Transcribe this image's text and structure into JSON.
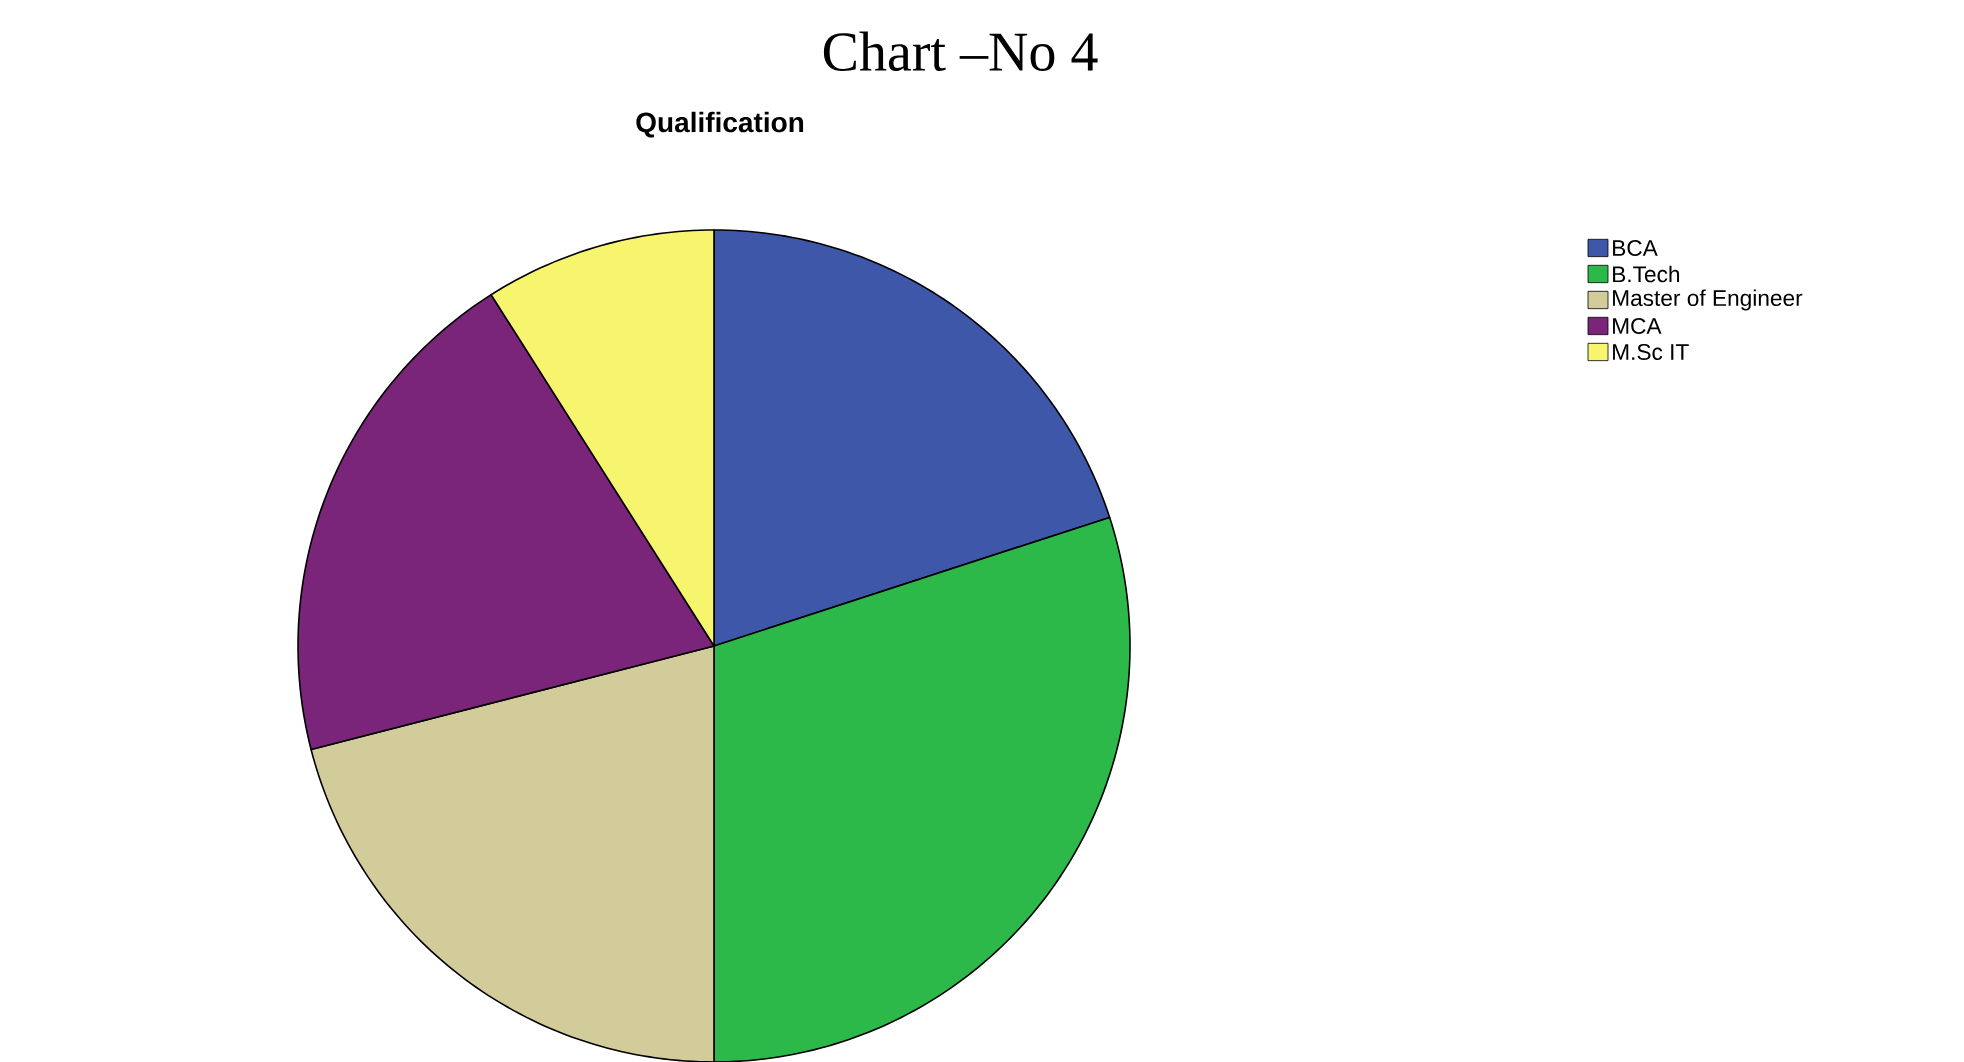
{
  "chart_data": {
    "type": "pie",
    "title": "Chart –No 4",
    "subtitle": "Qualification",
    "categories": [
      "BCA",
      "B.Tech",
      "Master of Engineer",
      "MCA",
      "M.Sc IT"
    ],
    "values": [
      20,
      30,
      21,
      20,
      9
    ],
    "colors": [
      "#3f57a8",
      "#2db84a",
      "#d2cb9a",
      "#7a2579",
      "#f7f56e"
    ],
    "legend": "top right"
  }
}
